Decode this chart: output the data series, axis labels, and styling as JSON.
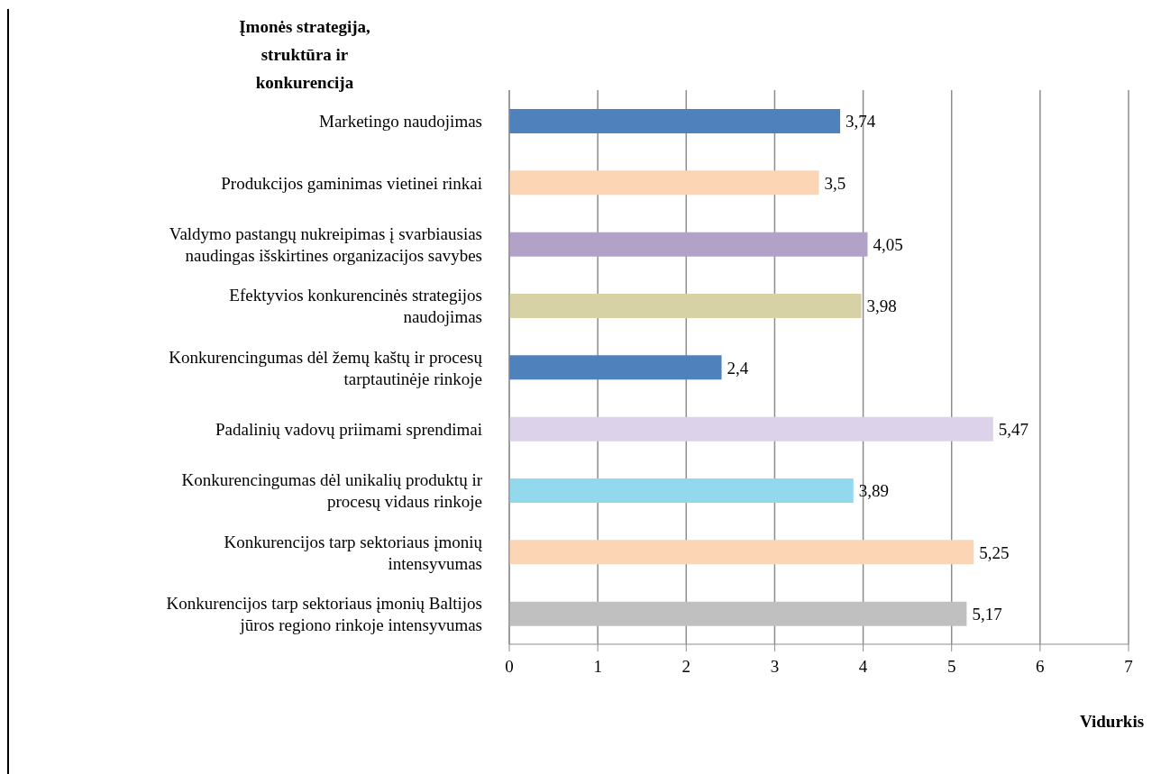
{
  "chart_data": {
    "type": "bar",
    "orientation": "horizontal",
    "ylabel": "Įmonės strategija, struktūra ir konkurencija",
    "xlabel": "Vidurkis",
    "categories": [
      "Marketingo naudojimas",
      "Produkcijos gaminimas vietinei rinkai",
      "Valdymo pastangų nukreipimas į svarbiausias naudingas išskirtines organizacijos savybes",
      "Efektyvios konkurencinės strategijos naudojimas",
      "Konkurencingumas dėl žemų kaštų ir procesų tarptautinėje rinkoje",
      "Padalinių vadovų priimami sprendimai",
      "Konkurencingumas dėl unikalių produktų ir procesų vidaus rinkoje",
      "Konkurencijos tarp sektoriaus įmonių intensyvumas",
      "Konkurencijos tarp sektoriaus įmonių Baltijos jūros regiono rinkoje intensyvumas"
    ],
    "values": [
      3.74,
      3.5,
      4.05,
      3.98,
      2.4,
      5.47,
      3.89,
      5.25,
      5.17
    ],
    "colors": [
      "#4f81bd",
      "#fcd5b5",
      "#b3a2c7",
      "#d7d2a6",
      "#4f81bd",
      "#dcd3ea",
      "#93d9ee",
      "#fcd5b5",
      "#c0c0c0"
    ],
    "value_labels": [
      "3,74",
      "3,5",
      "4,05",
      "3,98",
      "2,4",
      "5,47",
      "3,89",
      "5,25",
      "5,17"
    ],
    "xlim": [
      0,
      7
    ],
    "xticks": [
      0,
      1,
      2,
      3,
      4,
      5,
      6,
      7
    ],
    "grid": "x"
  }
}
